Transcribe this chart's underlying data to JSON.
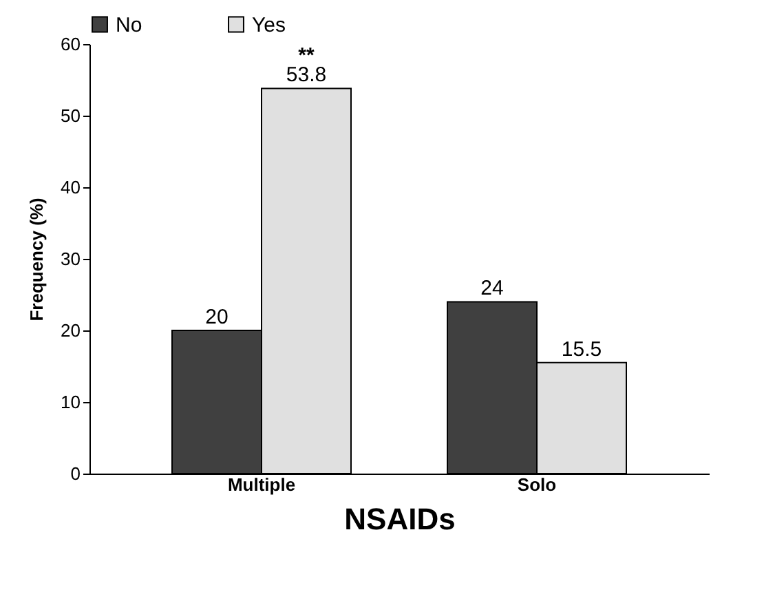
{
  "chart_data": {
    "type": "bar",
    "xlabel": "NSAIDs",
    "ylabel": "Frequency (%)",
    "categories": [
      "Multiple",
      "Solo"
    ],
    "series": [
      {
        "name": "No",
        "color": "#404040",
        "values": [
          20,
          24
        ]
      },
      {
        "name": "Yes",
        "color": "#e0e0e0",
        "values": [
          53.8,
          15.5
        ]
      }
    ],
    "ylim": [
      0,
      60
    ],
    "yticks": [
      0,
      10,
      20,
      30,
      40,
      50,
      60
    ],
    "grid": false,
    "legend": "top",
    "data_labels": true,
    "annotations": [
      {
        "text": "**",
        "x": "Multiple",
        "y": 53.8
      }
    ]
  }
}
